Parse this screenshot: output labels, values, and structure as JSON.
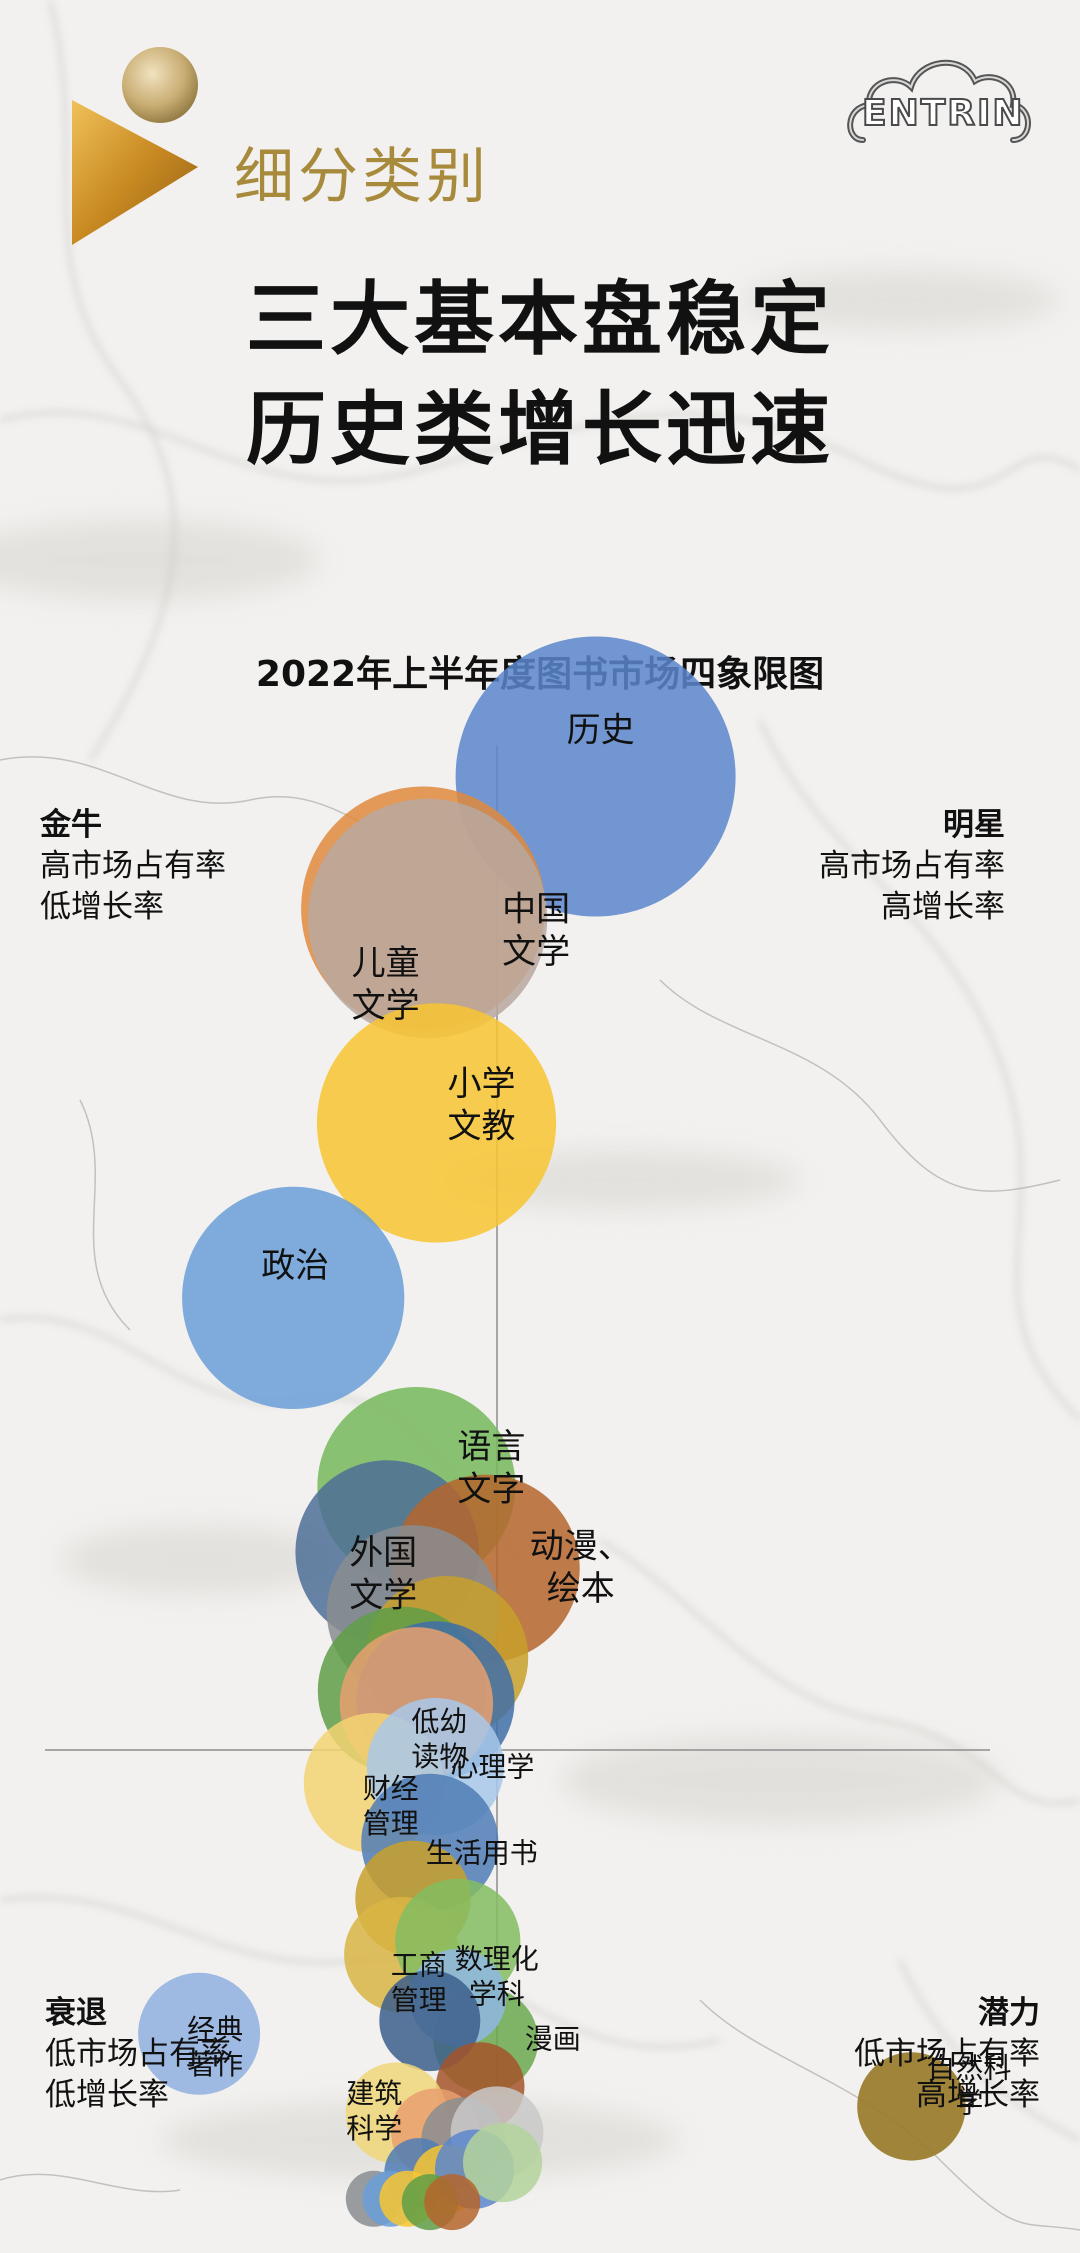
{
  "header": {
    "section_label": "细分类别",
    "brand_text": "ENTRIN",
    "headline_1": "三大基本盘稳定",
    "headline_2": "历史类增长迅速"
  },
  "quadrants": {
    "top_left": {
      "name": "金牛",
      "line1": "高市场占有率",
      "line2": "低增长率"
    },
    "top_right": {
      "name": "明星",
      "line1": "高市场占有率",
      "line2": "高增长率"
    },
    "bottom_left": {
      "name": "衰退",
      "line1": "低市场占有率",
      "line2": "低增长率"
    },
    "bottom_right": {
      "name": "潜力",
      "line1": "低市场占有率",
      "line2": "高增长率"
    }
  },
  "chart_data": {
    "type": "bubble",
    "title": "2022年上半年度图书市场四象限图",
    "xlabel": "",
    "ylabel": "",
    "grid": false,
    "legend": "none",
    "bubbles": [
      {
        "label": "历史",
        "x": 0.88,
        "y": 2.95,
        "size": 1.0,
        "color": "#5b86cc"
      },
      {
        "label": "中国文学",
        "x": -0.66,
        "y": 2.55,
        "size": 0.76,
        "color": "#e08a3c"
      },
      {
        "label": "儿童文学",
        "x": -0.62,
        "y": 2.52,
        "size": 0.73,
        "color": "#b9a8a0"
      },
      {
        "label": "小学文教",
        "x": -0.54,
        "y": 1.9,
        "size": 0.73,
        "color": "#f8c531"
      },
      {
        "label": "政治",
        "x": -1.82,
        "y": 1.37,
        "size": 0.63,
        "color": "#6a9fd8"
      },
      {
        "label": "语言文字",
        "x": -0.72,
        "y": 0.8,
        "size": 0.5,
        "color": "#76b85b"
      },
      {
        "label": "外国文学",
        "x": -0.98,
        "y": 0.6,
        "size": 0.43,
        "color": "#4d6e96"
      },
      {
        "label": "动漫、绘本",
        "x": -0.1,
        "y": 0.55,
        "size": 0.45,
        "color": "#b5652c"
      },
      {
        "label": "",
        "x": -0.75,
        "y": 0.42,
        "size": 0.38,
        "color": "#8a8d90"
      },
      {
        "label": "",
        "x": -0.45,
        "y": 0.28,
        "size": 0.34,
        "color": "#c8a02a"
      },
      {
        "label": "",
        "x": -0.85,
        "y": 0.18,
        "size": 0.36,
        "color": "#5f9d46"
      },
      {
        "label": "",
        "x": -0.55,
        "y": 0.15,
        "size": 0.32,
        "color": "#3f6ea8"
      },
      {
        "label": "低幼读物",
        "x": -0.72,
        "y": 0.14,
        "size": 0.3,
        "color": "#e9a070"
      },
      {
        "label": "财经管理",
        "x": -1.1,
        "y": -0.1,
        "size": 0.25,
        "color": "#f3d472"
      },
      {
        "label": "心理学",
        "x": -0.55,
        "y": -0.05,
        "size": 0.24,
        "color": "#a8c8ea"
      },
      {
        "label": "生活用书",
        "x": -0.6,
        "y": -0.28,
        "size": 0.24,
        "color": "#4f7cb5"
      },
      {
        "label": "",
        "x": -0.75,
        "y": -0.45,
        "size": 0.17,
        "color": "#c8a02a"
      },
      {
        "label": "工商管理",
        "x": -0.85,
        "y": -0.62,
        "size": 0.17,
        "color": "#d9b545"
      },
      {
        "label": "数理化学科",
        "x": -0.35,
        "y": -0.58,
        "size": 0.2,
        "color": "#84bd62"
      },
      {
        "label": "漫画",
        "x": -0.1,
        "y": -0.88,
        "size": 0.14,
        "color": "#6ba84e"
      },
      {
        "label": "",
        "x": -0.35,
        "y": -0.75,
        "size": 0.12,
        "color": "#8fb7e3"
      },
      {
        "label": "",
        "x": -0.6,
        "y": -0.82,
        "size": 0.13,
        "color": "#3c5f8c"
      },
      {
        "label": "",
        "x": -0.15,
        "y": -1.02,
        "size": 0.1,
        "color": "#a4532a"
      },
      {
        "label": "经典著作",
        "x": -2.66,
        "y": -0.86,
        "size": 0.19,
        "color": "#8fb0e0"
      },
      {
        "label": "建筑科学",
        "x": -0.9,
        "y": -1.1,
        "size": 0.13,
        "color": "#f0d77a"
      },
      {
        "label": "",
        "x": -0.55,
        "y": -1.16,
        "size": 0.1,
        "color": "#e9a070"
      },
      {
        "label": "",
        "x": -0.3,
        "y": -1.18,
        "size": 0.09,
        "color": "#8a8d90"
      },
      {
        "label": "",
        "x": 0.0,
        "y": -1.16,
        "size": 0.11,
        "color": "#c9c9c9"
      },
      {
        "label": "",
        "x": -0.7,
        "y": -1.28,
        "size": 0.06,
        "color": "#4f7cb5"
      },
      {
        "label": "",
        "x": -0.45,
        "y": -1.3,
        "size": 0.06,
        "color": "#f8c531"
      },
      {
        "label": "",
        "x": -0.2,
        "y": -1.27,
        "size": 0.08,
        "color": "#5b86cc"
      },
      {
        "label": "",
        "x": 0.05,
        "y": -1.25,
        "size": 0.08,
        "color": "#b4d39b"
      },
      {
        "label": "",
        "x": -1.1,
        "y": -1.36,
        "size": 0.04,
        "color": "#8a8d90"
      },
      {
        "label": "",
        "x": -0.95,
        "y": -1.36,
        "size": 0.04,
        "color": "#6a9fd8"
      },
      {
        "label": "",
        "x": -0.8,
        "y": -1.36,
        "size": 0.04,
        "color": "#f8c531"
      },
      {
        "label": "",
        "x": -0.6,
        "y": -1.37,
        "size": 0.04,
        "color": "#5f9d46"
      },
      {
        "label": "",
        "x": -0.4,
        "y": -1.37,
        "size": 0.04,
        "color": "#b5652c"
      },
      {
        "label": "自然科学",
        "x": 3.7,
        "y": -1.08,
        "size": 0.15,
        "color": "#9a7d2e"
      }
    ]
  }
}
